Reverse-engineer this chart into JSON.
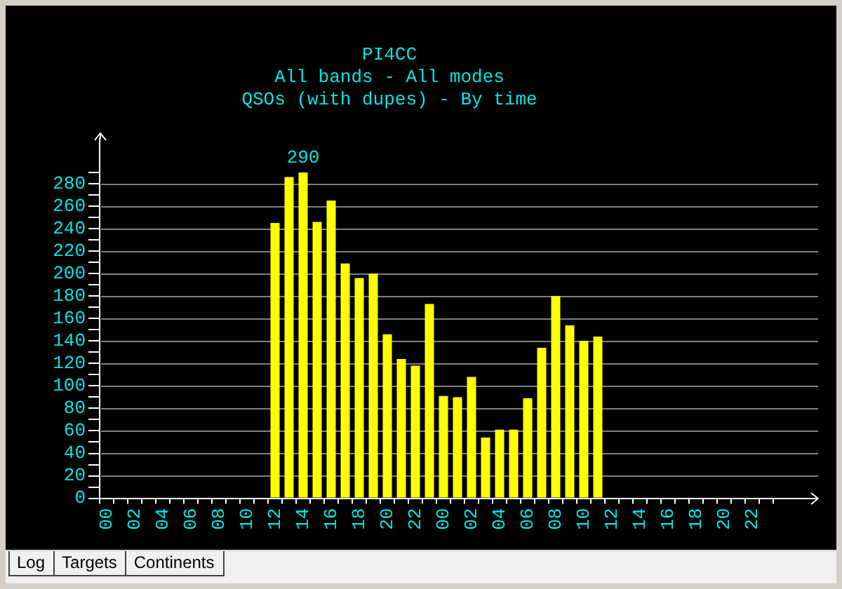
{
  "chart_data": {
    "type": "bar",
    "title": "PI4CC",
    "subtitle": "All bands - All modes\nQSOs (with dupes) - By time",
    "categories": [
      "00",
      null,
      "02",
      null,
      "04",
      null,
      "06",
      null,
      "08",
      null,
      "10",
      null,
      "12",
      null,
      "14",
      null,
      "16",
      null,
      "18",
      null,
      "20",
      null,
      "22",
      null,
      "00",
      null,
      "02",
      null,
      "04",
      null,
      "06",
      null,
      "08",
      null,
      "10",
      null,
      "12",
      null,
      "14",
      null,
      "16",
      null,
      "18",
      null,
      "20",
      null,
      "22",
      null
    ],
    "values": [
      null,
      null,
      null,
      null,
      null,
      null,
      null,
      null,
      null,
      null,
      null,
      null,
      245,
      286,
      290,
      246,
      265,
      209,
      196,
      200,
      146,
      124,
      118,
      173,
      91,
      90,
      108,
      54,
      61,
      61,
      89,
      134,
      180,
      154,
      140,
      144,
      null,
      null,
      null,
      null,
      null,
      null,
      null,
      null,
      null,
      null,
      null,
      null
    ],
    "color": "#ffff00",
    "value_labels": [
      null,
      null,
      null,
      null,
      null,
      null,
      null,
      null,
      null,
      null,
      null,
      null,
      null,
      null,
      "290",
      null,
      null,
      null,
      null,
      null,
      null,
      null,
      null,
      null,
      null,
      null,
      null,
      null,
      null,
      null,
      null,
      null,
      null,
      null,
      null,
      null,
      null,
      null,
      null,
      null,
      null,
      null,
      null,
      null,
      null,
      null,
      null,
      null
    ],
    "ylim": [
      0,
      320
    ],
    "yticks": [
      0,
      {
        "value": 10,
        "label": null
      },
      20,
      {
        "value": 30,
        "label": null
      },
      40,
      {
        "value": 50,
        "label": null
      },
      60,
      {
        "value": 70,
        "label": null
      },
      80,
      {
        "value": 90,
        "label": null
      },
      100,
      {
        "value": 110,
        "label": null
      },
      120,
      {
        "value": 130,
        "label": null
      },
      140,
      {
        "value": 150,
        "label": null
      },
      160,
      {
        "value": 170,
        "label": null
      },
      180,
      {
        "value": 190,
        "label": null
      },
      200,
      {
        "value": 210,
        "label": null
      },
      220,
      {
        "value": 230,
        "label": null
      },
      240,
      {
        "value": 250,
        "label": null
      },
      260,
      {
        "value": 270,
        "label": null
      },
      280,
      {
        "value": 290,
        "label": null
      }
    ],
    "grid": "y",
    "annotations": [
      "Log",
      "Targets",
      "Continents"
    ]
  }
}
